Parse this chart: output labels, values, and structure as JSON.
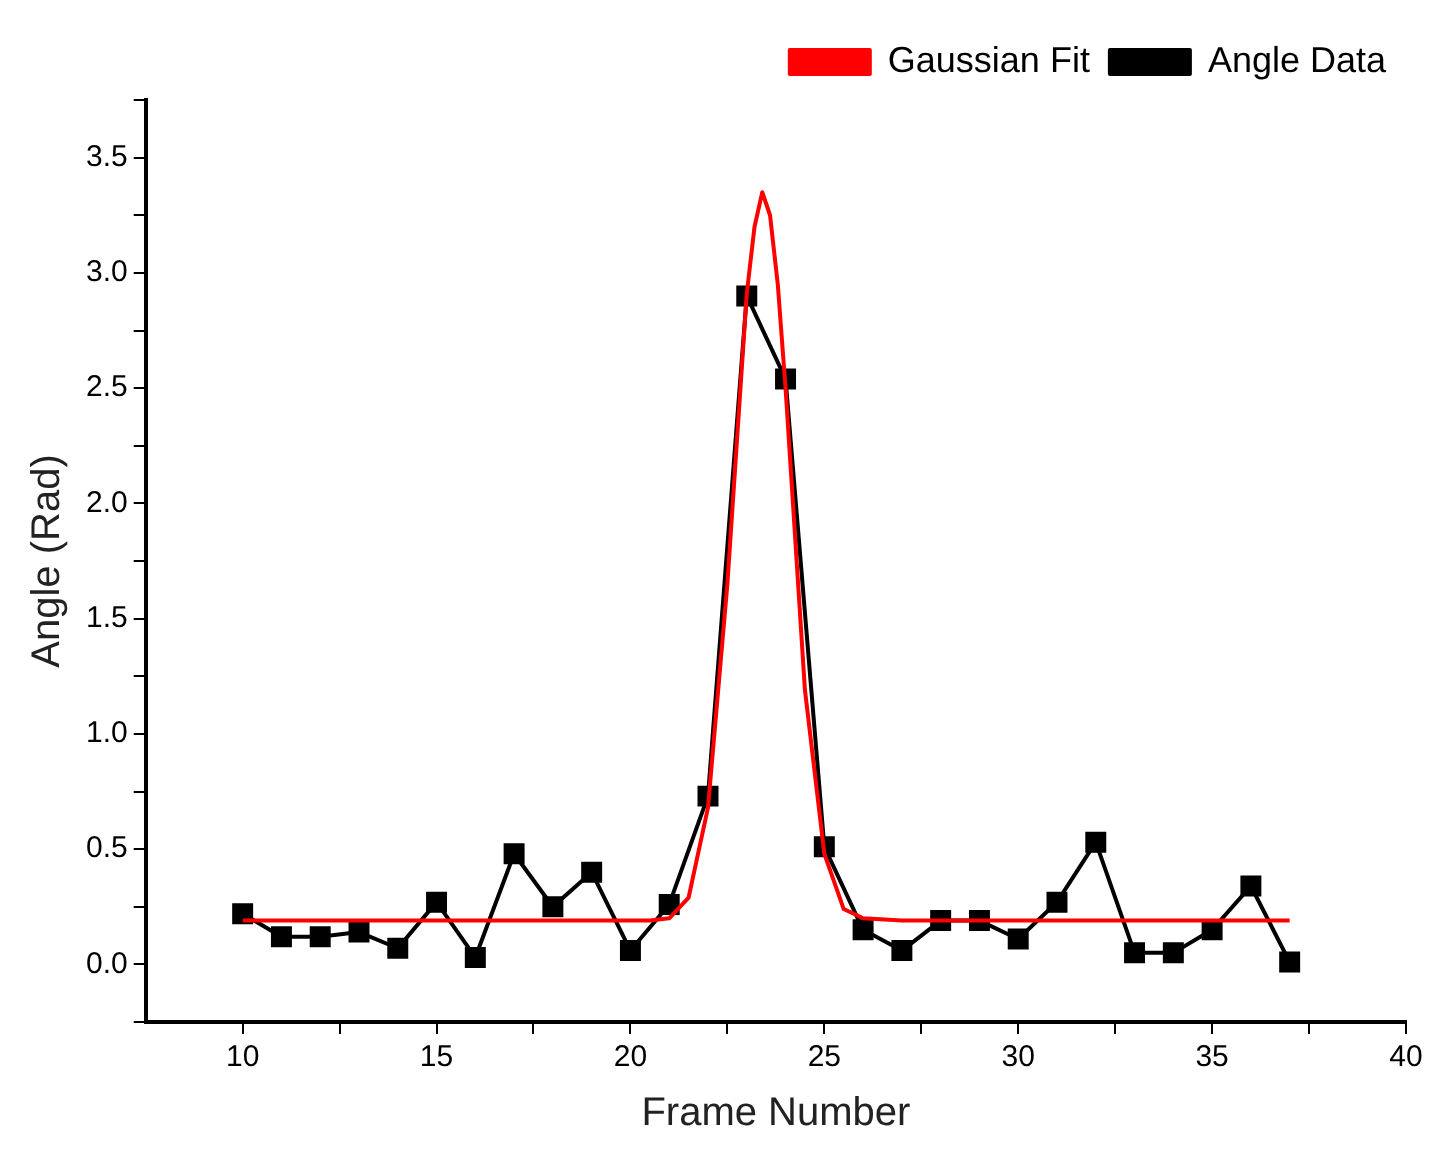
{
  "chart_data": {
    "type": "line",
    "xlabel": "Frame Number",
    "ylabel": "Angle (Rad)",
    "xlim": [
      7.5,
      40
    ],
    "xticks": [
      10,
      {
        "value": 12.5,
        "label": null
      },
      15,
      {
        "value": 17.5,
        "label": null
      },
      20,
      {
        "value": 22.5,
        "label": null
      },
      25,
      {
        "value": 27.5,
        "label": null
      },
      30,
      {
        "value": 32.5,
        "label": null
      },
      35,
      {
        "value": 37.5,
        "label": null
      },
      40
    ],
    "ylim": [
      -0.25,
      3.75
    ],
    "yticks": [
      {
        "value": -0.25,
        "label": null
      },
      "0.0",
      {
        "value": 0.25,
        "label": null
      },
      {
        "value": 0.5,
        "label": "0.5"
      },
      {
        "value": 0.75,
        "label": null
      },
      {
        "value": 1,
        "label": "1.0"
      },
      {
        "value": 1.25,
        "label": null
      },
      {
        "value": 1.5,
        "label": "1.5"
      },
      {
        "value": 1.75,
        "label": null
      },
      {
        "value": 2,
        "label": "2.0"
      },
      {
        "value": 2.25,
        "label": null
      },
      {
        "value": 2.5,
        "label": "2.5"
      },
      {
        "value": 2.75,
        "label": null
      },
      {
        "value": 3,
        "label": "3.0"
      },
      {
        "value": 3.25,
        "label": null
      },
      {
        "value": 3.5,
        "label": "3.5"
      },
      {
        "value": 3.75,
        "label": null
      }
    ],
    "grid": false,
    "legend": "top right",
    "series": [
      {
        "name": "Angle Data",
        "color": "#000000",
        "marker": "square",
        "x": [
          10,
          11,
          12,
          13,
          14,
          15,
          16,
          17,
          18,
          19,
          20,
          21,
          22,
          23,
          24,
          25,
          26,
          27,
          28,
          29,
          30,
          31,
          32,
          33,
          34,
          35,
          36,
          37
        ],
        "values": [
          0.22,
          0.12,
          0.12,
          0.14,
          0.07,
          0.27,
          0.03,
          0.48,
          0.25,
          0.4,
          0.06,
          0.26,
          0.73,
          2.9,
          2.54,
          0.51,
          0.15,
          0.06,
          0.19,
          0.19,
          0.11,
          0.27,
          0.53,
          0.05,
          0.05,
          0.15,
          0.34,
          0.01
        ]
      },
      {
        "name": "Gaussian Fit",
        "color": "#ff0000",
        "marker": "none",
        "x": [
          10,
          20.5,
          21,
          21.5,
          22,
          22.5,
          23,
          23.2,
          23.4,
          23.6,
          23.8,
          24,
          24.5,
          25,
          25.5,
          26,
          27,
          37
        ],
        "values": [
          0.19,
          0.19,
          0.2,
          0.29,
          0.68,
          1.65,
          2.91,
          3.2,
          3.35,
          3.25,
          2.95,
          2.5,
          1.19,
          0.48,
          0.24,
          0.2,
          0.19,
          0.19
        ]
      }
    ]
  }
}
